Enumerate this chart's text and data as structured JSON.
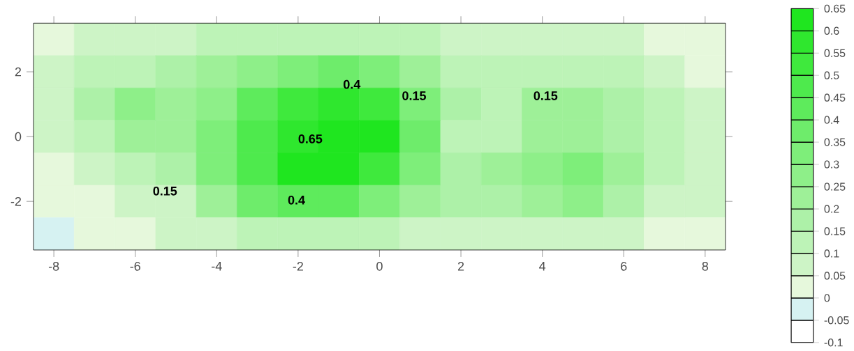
{
  "chart_data": {
    "type": "heatmap",
    "categories": [
      "-8",
      null,
      "-6",
      null,
      "-4",
      null,
      "-2",
      null,
      "0",
      null,
      "2",
      null,
      "4",
      null,
      "6",
      null,
      "8"
    ],
    "y_categories": [
      null,
      "2",
      null,
      "0",
      null,
      "-2",
      null
    ],
    "cells": [
      [
        0,
        0.05,
        0.05,
        0.05,
        0.1,
        0.1,
        0.1,
        0.1,
        0.1,
        0.1,
        0.05,
        0.05,
        0.05,
        0.05,
        0.05,
        0,
        0
      ],
      [
        0.05,
        0.1,
        0.1,
        0.15,
        0.2,
        0.25,
        0.3,
        0.35,
        0.3,
        0.2,
        0.1,
        0.1,
        0.1,
        0.1,
        0.1,
        0.05,
        0
      ],
      [
        0.05,
        0.15,
        0.25,
        0.2,
        0.25,
        0.4,
        0.5,
        0.55,
        0.5,
        0.3,
        0.15,
        0.1,
        0.2,
        0.2,
        0.15,
        0.1,
        0.05
      ],
      [
        0.05,
        0.1,
        0.2,
        0.2,
        0.3,
        0.45,
        0.55,
        0.65,
        0.6,
        0.35,
        0.1,
        0.1,
        0.2,
        0.2,
        0.15,
        0.1,
        0.05
      ],
      [
        0,
        0.05,
        0.1,
        0.15,
        0.3,
        0.45,
        0.6,
        0.6,
        0.5,
        0.3,
        0.15,
        0.2,
        0.25,
        0.3,
        0.2,
        0.1,
        0.05
      ],
      [
        0,
        0,
        0.05,
        0.05,
        0.2,
        0.35,
        0.4,
        0.4,
        0.3,
        0.2,
        0.15,
        0.15,
        0.2,
        0.25,
        0.15,
        0.05,
        0.05
      ],
      [
        -0.05,
        0,
        0,
        0.05,
        0.05,
        0.1,
        0.1,
        0.1,
        0.1,
        0.05,
        0.05,
        0.05,
        0.05,
        0.05,
        0.05,
        0,
        0
      ]
    ],
    "clim": [
      -0.1,
      0.65
    ],
    "cticks": [
      -0.1,
      -0.05,
      0,
      0.05,
      0.1,
      0.15,
      0.2,
      0.25,
      0.3,
      0.35,
      0.4,
      0.45,
      0.5,
      0.55,
      0.6,
      0.65
    ],
    "annotations": [
      "0.4",
      "0.15",
      "0.15",
      "0.65",
      "0.15",
      "0.4"
    ]
  }
}
